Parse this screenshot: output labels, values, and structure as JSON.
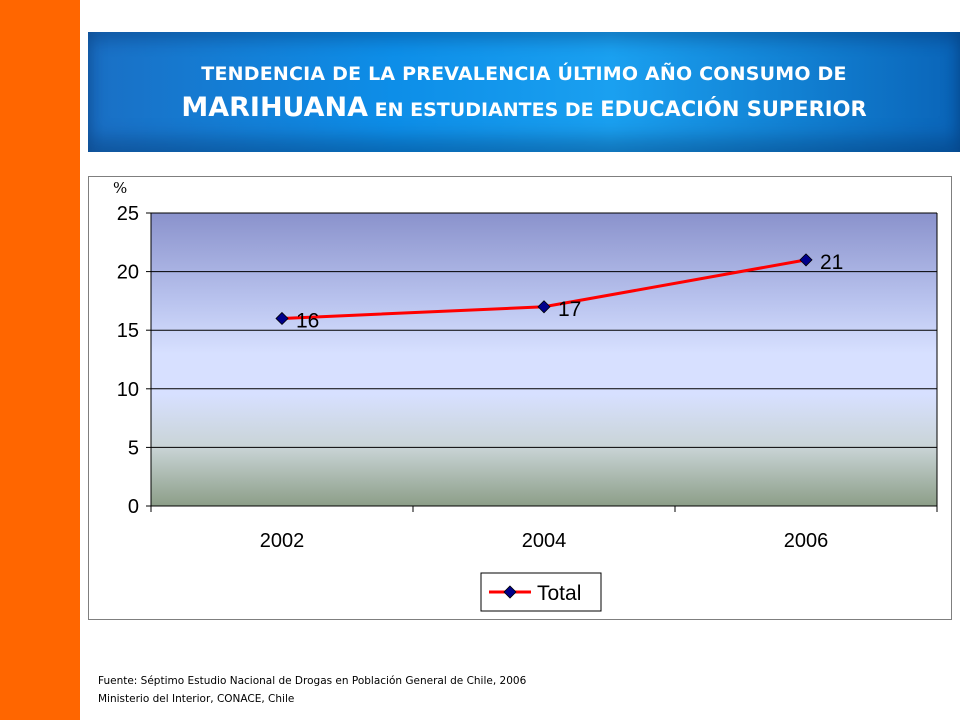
{
  "header": {
    "title_line1": "TENDENCIA DE LA PREVALENCIA ÚLTIMO AÑO  CONSUMO DE",
    "title_line2_a": "MARIHUANA",
    "title_line2_b": " EN ESTUDIANTES DE ",
    "title_line2_c": "EDUCACIÓN",
    "title_line2_d": " SUPERIOR"
  },
  "colors": {
    "accent_bar": "#ff6600",
    "series": "#ff0000",
    "marker": "#00008b"
  },
  "chart_data": {
    "type": "line",
    "unit_label": "%",
    "categories": [
      "2002",
      "2004",
      "2006"
    ],
    "series": [
      {
        "name": "Total",
        "values": [
          16,
          17,
          21
        ]
      }
    ],
    "data_labels": [
      "16",
      "17",
      "21"
    ],
    "y_ticks": [
      "0",
      "5",
      "10",
      "15",
      "20",
      "25"
    ],
    "ylim": [
      0,
      25
    ],
    "grid": true,
    "legend_position": "bottom"
  },
  "footer": {
    "source_line1": "Fuente:  Séptimo Estudio Nacional de Drogas en Población General de Chile, 2006",
    "source_line2": "Ministerio del Interior, CONACE, Chile"
  }
}
